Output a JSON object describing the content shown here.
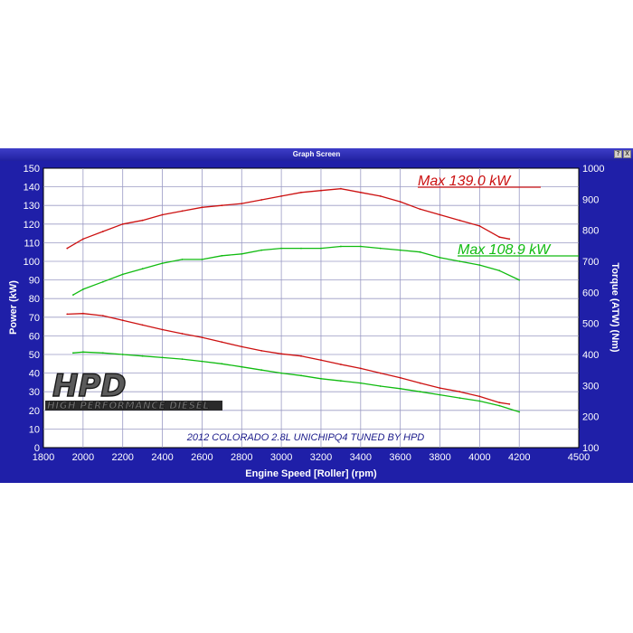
{
  "window": {
    "title": "Graph Screen",
    "controls": [
      "?",
      "X"
    ]
  },
  "logo": {
    "text": "HPD",
    "tagline": "HIGH PERFORMANCE DIESEL"
  },
  "chart_data": {
    "type": "line",
    "title": "",
    "subtitle": "2012 COLORADO 2.8L UNICHIPQ4 TUNED BY HPD",
    "xlabel": "Engine Speed [Roller] (rpm)",
    "ylabel": "Power (kW)",
    "y2label": "Torque (ATW) (Nm)",
    "xlim": [
      1800,
      4500
    ],
    "ylim": [
      0,
      150
    ],
    "y2lim": [
      100,
      1000
    ],
    "x_ticks": [
      1800,
      2000,
      2200,
      2400,
      2600,
      2800,
      3000,
      3200,
      3400,
      3600,
      3800,
      4000,
      4200,
      4500
    ],
    "y_ticks": [
      0,
      10,
      20,
      30,
      40,
      50,
      60,
      70,
      80,
      90,
      100,
      110,
      120,
      130,
      140,
      150
    ],
    "y2_ticks": [
      100,
      200,
      300,
      400,
      500,
      600,
      700,
      800,
      900,
      1000
    ],
    "grid": true,
    "colors": {
      "red": "#cc1111",
      "green": "#11bb11",
      "background": "#ffffff",
      "frame": "#1f1fa8"
    },
    "series": [
      {
        "axis": "left",
        "color": "#cc1111",
        "x": [
          1920,
          2000,
          2100,
          2200,
          2300,
          2400,
          2500,
          2600,
          2700,
          2800,
          2900,
          3000,
          3100,
          3200,
          3300,
          3400,
          3500,
          3600,
          3700,
          3800,
          3900,
          4000,
          4100,
          4150
        ],
        "y": [
          107,
          112,
          116,
          120,
          122,
          125,
          127,
          129,
          130,
          131,
          133,
          135,
          137,
          138,
          139,
          137,
          135,
          132,
          128,
          125,
          122,
          119,
          113,
          112
        ]
      },
      {
        "axis": "left",
        "color": "#11bb11",
        "x": [
          1950,
          2000,
          2100,
          2200,
          2300,
          2400,
          2500,
          2600,
          2700,
          2800,
          2900,
          3000,
          3100,
          3200,
          3300,
          3400,
          3500,
          3600,
          3700,
          3800,
          3900,
          4000,
          4100,
          4200
        ],
        "y": [
          82,
          85,
          89,
          93,
          96,
          99,
          101,
          101,
          103,
          104,
          106,
          107,
          107,
          107,
          108,
          108,
          107,
          106,
          105,
          102,
          100,
          98,
          95,
          90
        ]
      },
      {
        "axis": "right",
        "color": "#cc1111",
        "x": [
          1920,
          2000,
          2100,
          2200,
          2300,
          2400,
          2500,
          2600,
          2700,
          2800,
          2900,
          3000,
          3100,
          3200,
          3300,
          3400,
          3500,
          3600,
          3700,
          3800,
          3900,
          4000,
          4100,
          4150
        ],
        "y": [
          530,
          532,
          525,
          510,
          495,
          480,
          467,
          455,
          440,
          425,
          412,
          402,
          395,
          382,
          368,
          355,
          340,
          325,
          308,
          292,
          280,
          265,
          245,
          240
        ]
      },
      {
        "axis": "right",
        "color": "#11bb11",
        "x": [
          1950,
          2000,
          2100,
          2200,
          2300,
          2400,
          2500,
          2600,
          2700,
          2800,
          2900,
          3000,
          3100,
          3200,
          3300,
          3400,
          3500,
          3600,
          3700,
          3800,
          3900,
          4000,
          4100,
          4200
        ],
        "y": [
          405,
          408,
          405,
          400,
          395,
          390,
          385,
          378,
          370,
          360,
          350,
          340,
          332,
          322,
          315,
          308,
          298,
          290,
          280,
          270,
          260,
          250,
          235,
          215
        ]
      }
    ],
    "annotations": [
      {
        "text": "Max 139.0 kW",
        "color": "#cc1111"
      },
      {
        "text": "Max 108.9 kW",
        "color": "#11bb11"
      }
    ]
  }
}
